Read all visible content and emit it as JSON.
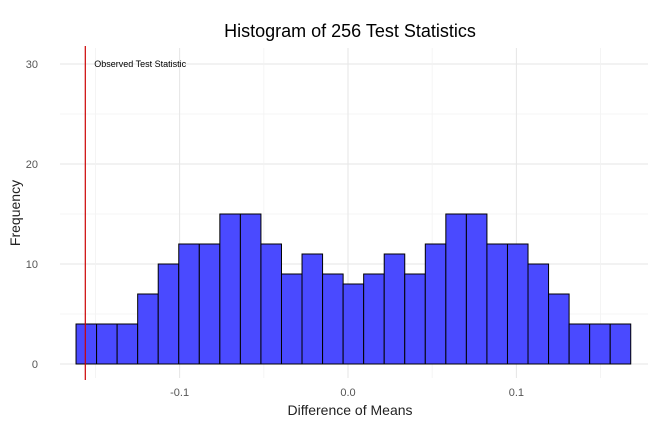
{
  "chart_data": {
    "type": "bar",
    "title": "Histogram of 256 Test Statistics",
    "xlabel": "Difference of Means",
    "ylabel": "Frequency",
    "xlim": [
      -0.165,
      0.165
    ],
    "ylim": [
      0,
      31
    ],
    "bin_width": 0.0122,
    "bins_start": -0.1615,
    "values": [
      4,
      4,
      4,
      7,
      10,
      12,
      12,
      15,
      15,
      12,
      9,
      11,
      9,
      8,
      9,
      11,
      9,
      12,
      15,
      15,
      12,
      12,
      10,
      7,
      4,
      4,
      4
    ],
    "x_ticks": [
      -0.1,
      0.0,
      0.1
    ],
    "x_tick_labels": [
      "-0.1",
      "0.0",
      "0.1"
    ],
    "y_ticks": [
      0,
      10,
      20,
      30
    ],
    "y_tick_labels": [
      "0",
      "10",
      "20",
      "30"
    ],
    "observed_statistic": -0.156,
    "annotation": "Observed Test Statistic",
    "grid": true,
    "colors": {
      "bar_fill": "#4a4aff",
      "bar_edge": "#000000",
      "vline": "#cc0000"
    }
  }
}
